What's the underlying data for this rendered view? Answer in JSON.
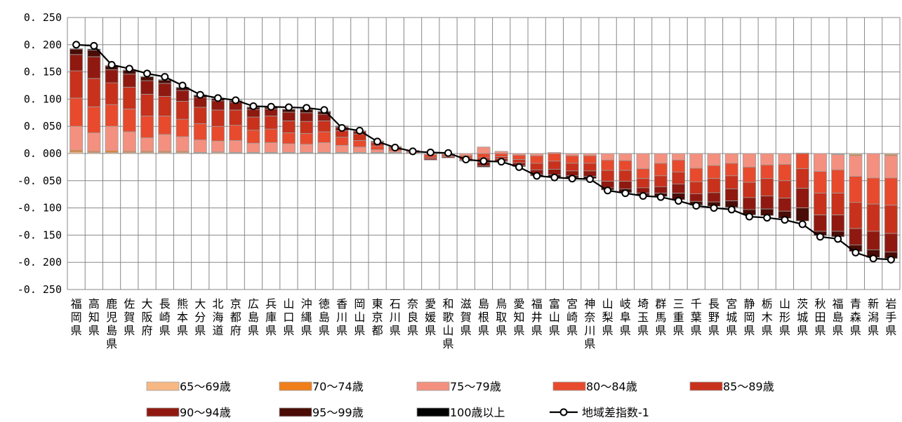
{
  "chart_data": {
    "type": "bar",
    "stacked": true,
    "ylim": [
      -0.25,
      0.25
    ],
    "yticks": [
      0.25,
      0.2,
      0.15,
      0.1,
      0.05,
      0.0,
      -0.05,
      -0.1,
      -0.15,
      -0.2,
      -0.25
    ],
    "ytick_labels": [
      "0. 250",
      "0. 200",
      "0. 150",
      "0. 100",
      "0. 050",
      "0. 000",
      "-0. 050",
      "-0. 100",
      "-0. 150",
      "-0. 200",
      "-0. 250"
    ],
    "grid": true,
    "legend_position": "bottom",
    "categories": [
      "福岡県",
      "高知県",
      "鹿児島県",
      "佐賀県",
      "大阪府",
      "長崎県",
      "熊本県",
      "大分県",
      "北海道",
      "京都府",
      "広島県",
      "兵庫県",
      "山口県",
      "沖縄県",
      "徳島県",
      "香川県",
      "岡山県",
      "東京都",
      "石川県",
      "奈良県",
      "愛媛県",
      "和歌山県",
      "滋賀県",
      "島根県",
      "鳥取県",
      "愛知県",
      "福井県",
      "富山県",
      "宮崎県",
      "神奈川県",
      "山梨県",
      "岐阜県",
      "埼玉県",
      "群馬県",
      "三重県",
      "千葉県",
      "長野県",
      "宮城県",
      "静岡県",
      "栃木県",
      "山形県",
      "茨城県",
      "秋田県",
      "福島県",
      "青森県",
      "新潟県",
      "岩手県"
    ],
    "series": [
      {
        "name": "65～69歳",
        "color": "#f8b883",
        "values": [
          0.003,
          0.002,
          0.002,
          0.002,
          0.002,
          0.002,
          0.002,
          0.001,
          0.002,
          0.001,
          0.001,
          0.001,
          0.001,
          0.001,
          0.001,
          0.001,
          0.001,
          0.001,
          0.001,
          0.0,
          0.0,
          0.0,
          0.0,
          0.0,
          0.0,
          0.0,
          0.0,
          0.0,
          0.0,
          0.0,
          0.0,
          0.0,
          0.0,
          0.0,
          0.0,
          0.0,
          0.0,
          0.0,
          0.0,
          0.0,
          0.0,
          0.0,
          0.0,
          -0.001,
          -0.002,
          0.0,
          -0.002
        ]
      },
      {
        "name": "70～74歳",
        "color": "#f07e1a",
        "values": [
          0.003,
          0.002,
          0.003,
          0.002,
          0.002,
          0.002,
          0.002,
          0.001,
          0.001,
          0.001,
          0.001,
          0.001,
          0.001,
          0.001,
          0.001,
          0.001,
          0.001,
          0.001,
          0.001,
          0.0,
          0.0,
          0.0,
          0.0,
          0.0,
          0.0,
          0.0,
          0.0,
          0.0,
          0.0,
          0.0,
          0.0,
          0.0,
          0.0,
          0.0,
          0.0,
          0.0,
          0.0,
          0.0,
          0.0,
          0.0,
          0.0,
          0.0,
          0.0,
          -0.001,
          -0.002,
          0.0,
          -0.002
        ]
      },
      {
        "name": "75～79歳",
        "color": "#f4907f",
        "values": [
          0.044,
          0.034,
          0.045,
          0.036,
          0.025,
          0.031,
          0.027,
          0.023,
          0.02,
          0.022,
          0.017,
          0.018,
          0.016,
          0.015,
          0.018,
          0.013,
          0.01,
          0.005,
          0.003,
          0.002,
          -0.002,
          -0.001,
          -0.004,
          0.012,
          0.004,
          -0.003,
          -0.004,
          0.002,
          -0.004,
          -0.004,
          -0.012,
          -0.013,
          -0.028,
          -0.018,
          -0.012,
          -0.027,
          -0.022,
          -0.018,
          -0.025,
          -0.021,
          -0.02,
          0.001,
          -0.033,
          -0.028,
          -0.038,
          -0.045,
          -0.041
        ]
      },
      {
        "name": "80～84歳",
        "color": "#e84a2d",
        "values": [
          0.052,
          0.048,
          0.04,
          0.042,
          0.04,
          0.034,
          0.032,
          0.03,
          0.027,
          0.028,
          0.024,
          0.025,
          0.02,
          0.02,
          0.02,
          0.015,
          0.012,
          0.007,
          0.004,
          0.002,
          -0.005,
          -0.003,
          -0.004,
          -0.008,
          -0.006,
          -0.008,
          -0.014,
          -0.014,
          -0.014,
          -0.014,
          -0.019,
          -0.018,
          -0.018,
          -0.023,
          -0.022,
          -0.025,
          -0.024,
          -0.023,
          -0.028,
          -0.025,
          -0.03,
          -0.028,
          -0.04,
          -0.043,
          -0.048,
          -0.048,
          -0.05
        ]
      },
      {
        "name": "85～89歳",
        "color": "#c8311c",
        "values": [
          0.05,
          0.052,
          0.04,
          0.04,
          0.04,
          0.036,
          0.033,
          0.03,
          0.03,
          0.028,
          0.024,
          0.024,
          0.022,
          0.022,
          0.02,
          0.012,
          0.012,
          0.006,
          0.003,
          0.002,
          -0.003,
          -0.002,
          -0.004,
          -0.008,
          -0.004,
          -0.006,
          -0.012,
          -0.015,
          -0.014,
          -0.014,
          -0.02,
          -0.02,
          -0.017,
          -0.02,
          -0.022,
          -0.022,
          -0.026,
          -0.024,
          -0.028,
          -0.032,
          -0.032,
          -0.036,
          -0.04,
          -0.04,
          -0.048,
          -0.05,
          -0.052
        ]
      },
      {
        "name": "90～94歳",
        "color": "#8f1910",
        "values": [
          0.03,
          0.04,
          0.024,
          0.024,
          0.025,
          0.024,
          0.02,
          0.018,
          0.017,
          0.014,
          0.014,
          0.013,
          0.016,
          0.016,
          0.012,
          0.006,
          0.005,
          0.002,
          0.001,
          0.0,
          -0.002,
          -0.002,
          -0.001,
          -0.007,
          -0.004,
          -0.005,
          -0.008,
          -0.01,
          -0.009,
          -0.01,
          -0.012,
          -0.014,
          -0.01,
          -0.012,
          -0.017,
          -0.014,
          -0.017,
          -0.022,
          -0.022,
          -0.024,
          -0.024,
          -0.036,
          -0.03,
          -0.03,
          -0.03,
          -0.034,
          -0.034
        ]
      },
      {
        "name": "95～99歳",
        "color": "#4a0c06",
        "values": [
          0.01,
          0.012,
          0.007,
          0.007,
          0.007,
          0.006,
          0.005,
          0.004,
          0.004,
          0.003,
          0.004,
          0.003,
          0.005,
          0.006,
          0.005,
          0.002,
          0.001,
          0.001,
          0.0,
          0.0,
          0.0,
          0.0,
          -0.001,
          -0.002,
          -0.001,
          -0.002,
          -0.003,
          -0.005,
          -0.004,
          -0.004,
          -0.004,
          -0.007,
          -0.004,
          -0.006,
          -0.012,
          -0.007,
          -0.008,
          -0.012,
          -0.01,
          -0.012,
          -0.013,
          -0.024,
          -0.008,
          -0.01,
          -0.012,
          -0.014,
          -0.012
        ]
      },
      {
        "name": "100歳以上",
        "color": "#000000",
        "values": [
          0.001,
          0.002,
          0.001,
          0.001,
          0.001,
          0.001,
          0.001,
          0.001,
          0.001,
          0.001,
          0.001,
          0.001,
          0.001,
          0.001,
          0.001,
          0.001,
          0.0,
          0.0,
          0.0,
          0.0,
          0.0,
          0.0,
          0.0,
          0.0,
          0.0,
          0.0,
          0.0,
          0.0,
          0.0,
          0.0,
          0.0,
          0.0,
          0.0,
          0.0,
          0.0,
          0.0,
          0.0,
          0.0,
          0.0,
          0.0,
          0.0,
          0.0,
          0.0,
          0.0,
          0.0,
          0.0,
          0.0
        ]
      },
      {
        "name": "地域差指数-1",
        "type": "line",
        "color": "#000000",
        "values": [
          0.2,
          0.198,
          0.163,
          0.156,
          0.147,
          0.141,
          0.125,
          0.108,
          0.102,
          0.098,
          0.087,
          0.086,
          0.085,
          0.084,
          0.08,
          0.047,
          0.042,
          0.022,
          0.011,
          0.004,
          0.002,
          0.001,
          -0.011,
          -0.014,
          -0.015,
          -0.025,
          -0.041,
          -0.044,
          -0.046,
          -0.047,
          -0.068,
          -0.073,
          -0.078,
          -0.08,
          -0.087,
          -0.096,
          -0.1,
          -0.103,
          -0.116,
          -0.118,
          -0.122,
          -0.13,
          -0.153,
          -0.157,
          -0.182,
          -0.193,
          -0.195
        ]
      }
    ]
  }
}
